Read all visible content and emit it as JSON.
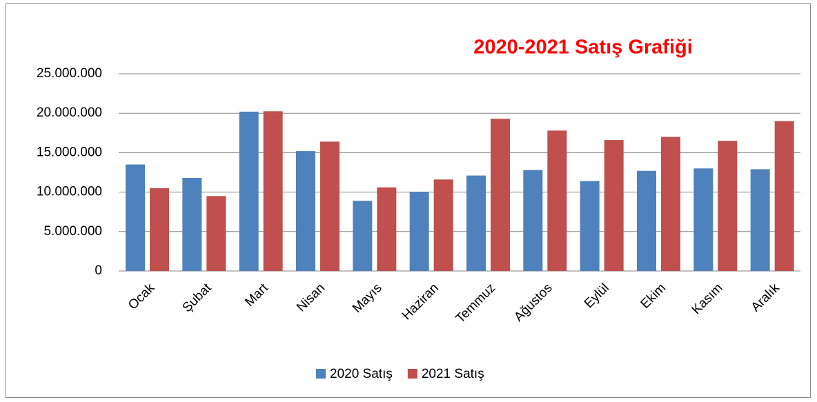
{
  "chart_data": {
    "type": "bar",
    "title": "2020-2021 Satış Grafiği",
    "categories": [
      "Ocak",
      "Şubat",
      "Mart",
      "Nisan",
      "Mayıs",
      "Haziran",
      "Temmuz",
      "Ağustos",
      "Eylül",
      "Ekim",
      "Kasım",
      "Aralık"
    ],
    "series": [
      {
        "name": "2020 Satış",
        "color": "#4f81bd",
        "values": [
          13500000,
          11800000,
          20200000,
          15200000,
          8900000,
          10050000,
          12100000,
          12800000,
          11400000,
          12700000,
          13000000,
          12900000
        ]
      },
      {
        "name": "2021 Satış",
        "color": "#c0504d",
        "values": [
          10500000,
          9500000,
          20250000,
          16400000,
          10600000,
          11600000,
          19300000,
          17800000,
          16600000,
          17000000,
          16500000,
          19000000
        ]
      }
    ],
    "ylim": [
      0,
      25000000
    ],
    "yticks": [
      0,
      {
        "value": 5000000,
        "label": "5.000.000"
      },
      {
        "value": 10000000,
        "label": "10.000.000"
      },
      {
        "value": 15000000,
        "label": "15.000.000"
      },
      {
        "value": 20000000,
        "label": "20.000.000"
      },
      {
        "value": 25000000,
        "label": "25.000.000"
      }
    ],
    "grid": true,
    "legend": "bottom"
  }
}
